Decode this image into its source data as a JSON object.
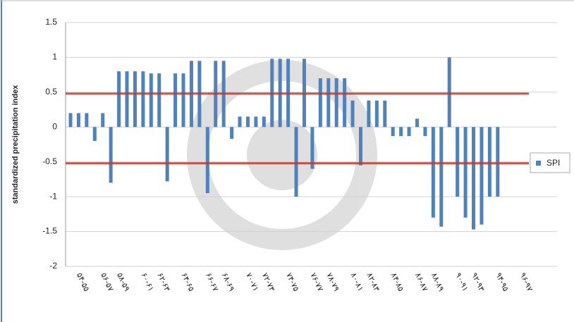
{
  "chart_data": {
    "type": "bar",
    "y_label": "standardized precipitation index",
    "categories": [
      null,
      "۵۴-۵۵",
      null,
      null,
      "۵۶-۵۷",
      null,
      "۵۸-۵۹",
      null,
      null,
      "۶۰-۶۱",
      null,
      "۶۲-۶۳",
      null,
      null,
      "۶۴-۶۵",
      null,
      null,
      "۶۶-۶۷",
      null,
      "۶۸-۶۹",
      null,
      null,
      "۷۰-۷۱",
      null,
      "۷۲-۷۳",
      null,
      null,
      "۷۴-۷۵",
      null,
      null,
      "۷۶-۷۷",
      null,
      "۷۸-۷۹",
      null,
      null,
      "۸۰-۸۱",
      null,
      "۸۲-۸۳",
      null,
      null,
      "۸۴-۸۵",
      null,
      null,
      "۸۶-۸۷",
      null,
      "۸۸-۸۹",
      null,
      null,
      "۹۰-۹۱",
      null,
      "۹۲-۹۳",
      null,
      null,
      "۹۴-۹۵",
      null,
      null,
      "۹۶-۹۷",
      null
    ],
    "series": [
      {
        "name": "SPI",
        "color": "#4f81bd",
        "values": [
          0.2,
          0.2,
          0.2,
          -0.2,
          0.2,
          -0.8,
          0.8,
          0.8,
          0.8,
          0.8,
          0.77,
          0.77,
          -0.78,
          0.77,
          0.77,
          0.95,
          0.95,
          -0.95,
          0.95,
          0.95,
          -0.17,
          0.15,
          0.15,
          0.15,
          0.15,
          0.98,
          0.98,
          0.98,
          -1.0,
          0.98,
          -0.6,
          0.7,
          0.7,
          0.7,
          0.7,
          0.38,
          -0.55,
          0.38,
          0.38,
          0.38,
          -0.13,
          -0.13,
          -0.13,
          0.12,
          -0.13,
          -1.3,
          -1.43,
          1.0,
          -1.0,
          -1.3,
          -1.47,
          -1.4,
          -1.0,
          -1.0,
          null,
          null,
          null,
          null
        ]
      }
    ],
    "reference_lines": [
      {
        "value": 0.48,
        "color": "#c0392b"
      },
      {
        "value": -0.52,
        "color": "#c0392b"
      }
    ],
    "ylim": [
      -2,
      1.5
    ],
    "yticks": [
      -2,
      -1.5,
      -1,
      -0.5,
      0,
      0.5,
      1,
      1.5
    ],
    "grid": true,
    "legend": "right"
  }
}
